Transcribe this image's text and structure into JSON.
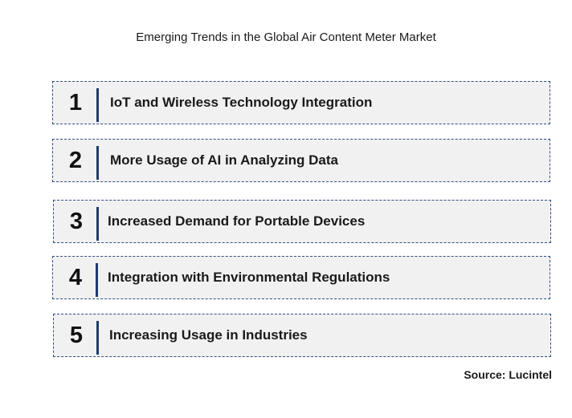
{
  "title": "Emerging Trends in the Global Air Content Meter Market",
  "trends": [
    {
      "number": "1",
      "label": "IoT and Wireless Technology Integration"
    },
    {
      "number": "2",
      "label": "More Usage of AI in Analyzing Data"
    },
    {
      "number": "3",
      "label": "Increased Demand for Portable Devices"
    },
    {
      "number": "4",
      "label": "Integration with Environmental Regulations"
    },
    {
      "number": "5",
      "label": "Increasing Usage in Industries"
    }
  ],
  "source": "Source: Lucintel",
  "colors": {
    "box_background": "#f1f1f1",
    "box_border": "#2f4f7f",
    "divider": "#1f3b6b",
    "text": "#1a1a1a"
  }
}
